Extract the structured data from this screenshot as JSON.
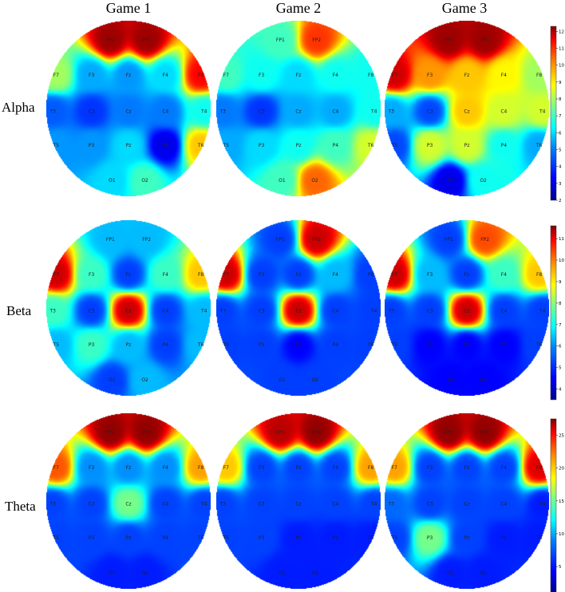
{
  "chart_data": {
    "type": "heatmap",
    "columns": [
      "Game 1",
      "Game 2",
      "Game 3"
    ],
    "rows": [
      "Alpha",
      "Beta",
      "Theta"
    ],
    "electrodes": [
      "FP1",
      "FP2",
      "F7",
      "F3",
      "Fz",
      "F4",
      "F8",
      "T3",
      "C3",
      "Cz",
      "C4",
      "T4",
      "T5",
      "P3",
      "Pz",
      "P4",
      "T6",
      "O1",
      "O2"
    ],
    "colormap": [
      "#00008f",
      "#0000ff",
      "#0080ff",
      "#00ffff",
      "#80ff80",
      "#ffff00",
      "#ff8000",
      "#ff0000",
      "#800000"
    ],
    "colorbars": [
      {
        "row": "Alpha",
        "range": [
          2,
          12.3
        ],
        "ticks": [
          "12",
          "11",
          "10",
          "9",
          "8",
          "7",
          "6",
          "5",
          "4",
          "3",
          "2"
        ]
      },
      {
        "row": "Beta",
        "range": [
          3.5,
          11.6
        ],
        "ticks": [
          "11",
          "10",
          "9",
          "8",
          "7",
          "6",
          "5",
          "4"
        ]
      },
      {
        "row": "Theta",
        "range": [
          1,
          27.5
        ],
        "ticks": [
          "25",
          "20",
          "15",
          "10",
          "5"
        ]
      }
    ],
    "maps": {
      "Alpha": [
        [
          12,
          12,
          7.5,
          5,
          4.8,
          5.5,
          11,
          4.2,
          3.8,
          4.5,
          4.5,
          6,
          4.8,
          4.8,
          5.5,
          3,
          9,
          5.5,
          6.5
        ],
        [
          6.5,
          10.5,
          6.5,
          6,
          5.5,
          6,
          6,
          4.5,
          3.8,
          5,
          5,
          6,
          5,
          5.5,
          6,
          6.5,
          8,
          6.5,
          10
        ],
        [
          12,
          12,
          11.5,
          9.5,
          9,
          8.5,
          7.5,
          5,
          4,
          9,
          8,
          8,
          4,
          8,
          8,
          6,
          5,
          3,
          6
        ]
      ],
      "Beta": [
        [
          6,
          6,
          11,
          7,
          5,
          7,
          9,
          7,
          5,
          11,
          5,
          6,
          6,
          7,
          6,
          5,
          6,
          5,
          6
        ],
        [
          5,
          11,
          11,
          5,
          5,
          6,
          5,
          5,
          5,
          11,
          5,
          5,
          5,
          5,
          4.5,
          5,
          5,
          5,
          5
        ],
        [
          5,
          10,
          11,
          6,
          5,
          7,
          9,
          5,
          5,
          11,
          5,
          5,
          5,
          4.5,
          4.5,
          4.5,
          5,
          4.5,
          4.5
        ]
      ],
      "Theta": [
        [
          27,
          27,
          22,
          8,
          8,
          8,
          20,
          6,
          6,
          14,
          6,
          6,
          6,
          6,
          6,
          6,
          6,
          5,
          5
        ],
        [
          26,
          27,
          19,
          6,
          6,
          6,
          20,
          6,
          6,
          6,
          6,
          6,
          6,
          6,
          5,
          5,
          5,
          5,
          5
        ],
        [
          27,
          27,
          20,
          6,
          6,
          6,
          25,
          7,
          6,
          6,
          6,
          5,
          6,
          14,
          6,
          5,
          5,
          5,
          5
        ]
      ]
    }
  }
}
